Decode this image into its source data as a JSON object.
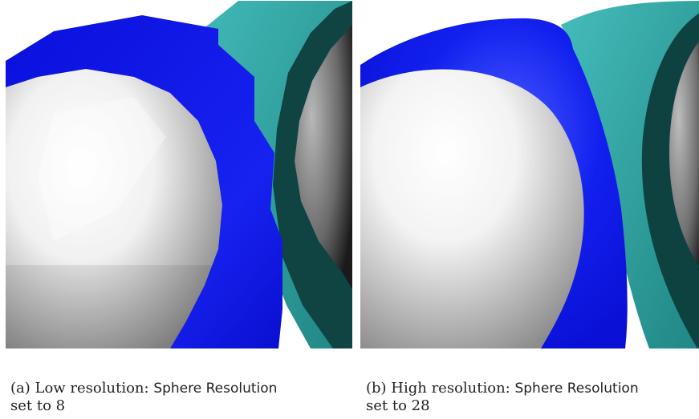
{
  "figures": [
    {
      "id": "a",
      "caption": {
        "prefix": "(a) Low resolution: ",
        "setting": "Sphere Resolution",
        "suffix": " set to 8"
      }
    },
    {
      "id": "b",
      "caption": {
        "prefix": "(b) High resolution: ",
        "setting": "Sphere Resolution",
        "suffix": " set to 28"
      }
    }
  ],
  "colors": {
    "background": "#ffffff",
    "teal_surface": "#2fa3a1",
    "dark_teal": "#0d3b3a",
    "blue_surface": "#0a12e0",
    "white_sphere": "#f5f5f5",
    "gray_sphere": "#6c6c6c"
  }
}
